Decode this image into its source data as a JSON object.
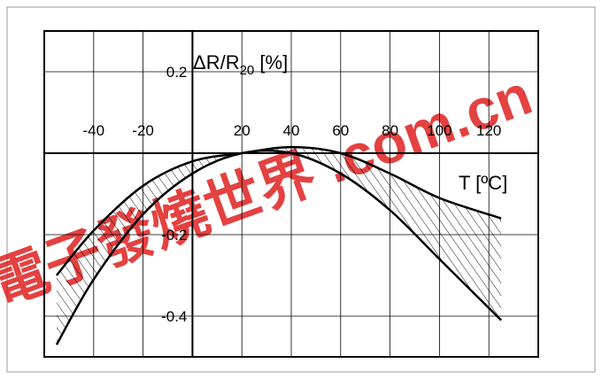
{
  "chart_data": {
    "type": "area",
    "title": "",
    "ylabel_main": "ΔR/R",
    "ylabel_sub": "20",
    "ylabel_tail": " [%]",
    "xlabel": "T [ºC]",
    "xlim": [
      -60,
      140
    ],
    "ylim": [
      -0.5,
      0.3
    ],
    "x_ticks": [
      -40,
      -20,
      20,
      40,
      60,
      80,
      100,
      120
    ],
    "x_tick_labels": [
      "-40",
      "-20",
      "20",
      "40",
      "60",
      "80",
      "100",
      "120"
    ],
    "y_ticks": [
      0.2,
      -0.2,
      -0.4
    ],
    "y_tick_labels": [
      "0.2",
      "-0.2",
      "-0.4"
    ],
    "grid": true,
    "series": [
      {
        "x": [
          -55,
          -40,
          -20,
          0,
          20,
          40,
          60,
          80,
          100,
          125
        ],
        "values": [
          -0.3,
          -0.19,
          -0.08,
          -0.02,
          0.0,
          0.015,
          0.0,
          -0.05,
          -0.11,
          -0.16
        ]
      },
      {
        "x": [
          -55,
          -40,
          -20,
          0,
          20,
          40,
          60,
          80,
          100,
          125
        ],
        "values": [
          -0.47,
          -0.31,
          -0.15,
          -0.05,
          0.0,
          0.0,
          -0.05,
          -0.14,
          -0.26,
          -0.41
        ]
      }
    ],
    "hatched_region": "between series"
  },
  "watermark_text": "電子發燒世界 .com.cn"
}
